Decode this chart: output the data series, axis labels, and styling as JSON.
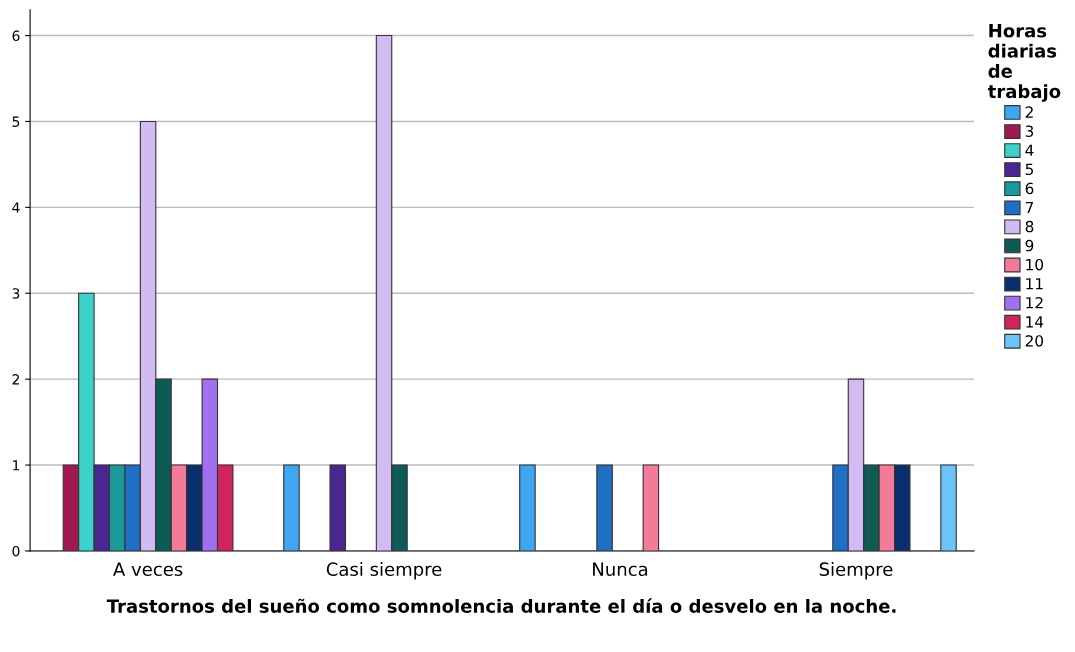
{
  "chart_data": {
    "type": "bar",
    "xlabel": "Trastornos del sueño como somnolencia durante el día o desvelo en la noche.",
    "legend_title": "Horas diarias de trabajo",
    "categories": [
      "A veces",
      "Casi siempre",
      "Nunca",
      "Siempre"
    ],
    "series": [
      {
        "name": "2",
        "color": "#3fa6f2",
        "values": [
          null,
          1,
          1,
          null
        ]
      },
      {
        "name": "3",
        "color": "#9e1a50",
        "values": [
          1,
          null,
          null,
          null
        ]
      },
      {
        "name": "4",
        "color": "#3dd1c9",
        "values": [
          3,
          null,
          null,
          null
        ]
      },
      {
        "name": "5",
        "color": "#4a2690",
        "values": [
          1,
          1,
          null,
          null
        ]
      },
      {
        "name": "6",
        "color": "#1a9a9a",
        "values": [
          1,
          null,
          null,
          null
        ]
      },
      {
        "name": "7",
        "color": "#1f6fc5",
        "values": [
          1,
          null,
          1,
          1
        ]
      },
      {
        "name": "8",
        "color": "#d2bbf2",
        "values": [
          5,
          6,
          null,
          2
        ]
      },
      {
        "name": "9",
        "color": "#0e5a55",
        "values": [
          2,
          1,
          null,
          1
        ]
      },
      {
        "name": "10",
        "color": "#f47a9a",
        "values": [
          1,
          null,
          1,
          1
        ]
      },
      {
        "name": "11",
        "color": "#0a2f6e",
        "values": [
          1,
          null,
          null,
          1
        ]
      },
      {
        "name": "12",
        "color": "#a070f0",
        "values": [
          2,
          null,
          null,
          null
        ]
      },
      {
        "name": "14",
        "color": "#d0245a",
        "values": [
          1,
          null,
          null,
          null
        ]
      },
      {
        "name": "20",
        "color": "#6cc3f5",
        "values": [
          null,
          null,
          null,
          1
        ]
      }
    ],
    "ylim": [
      0,
      6.3
    ],
    "yticks": [
      0,
      1,
      2,
      3,
      4,
      5,
      6
    ],
    "grid": "y",
    "legend": "right"
  }
}
